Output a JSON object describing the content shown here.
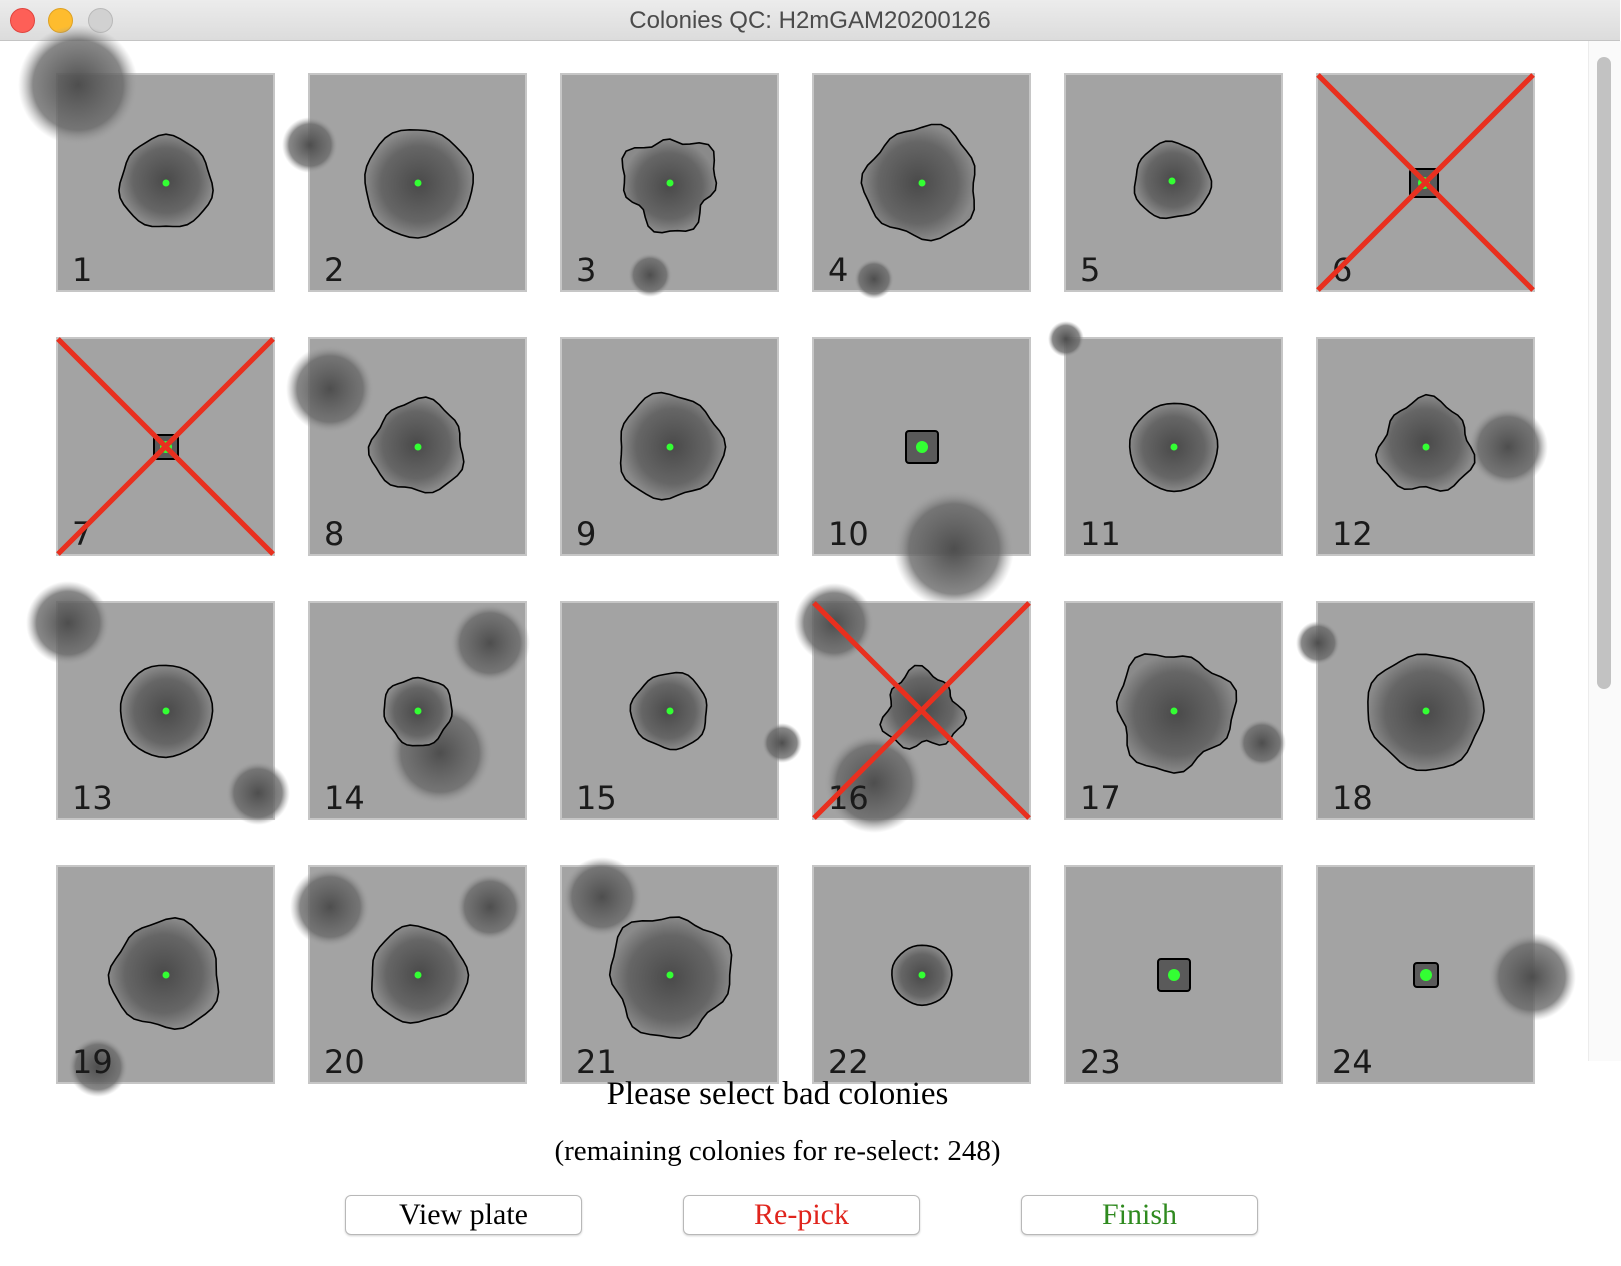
{
  "window": {
    "title": "Colonies QC: H2mGAM20200126"
  },
  "colors": {
    "background_gray": "#a3a3a3",
    "reject_cross": "#e8301f",
    "center_marker": "#33ff33",
    "repick_text": "#e0241c",
    "finish_text": "#2f8a1f"
  },
  "colonies": [
    {
      "number": "1",
      "rejected": false
    },
    {
      "number": "2",
      "rejected": false
    },
    {
      "number": "3",
      "rejected": false
    },
    {
      "number": "4",
      "rejected": false
    },
    {
      "number": "5",
      "rejected": false
    },
    {
      "number": "6",
      "rejected": true
    },
    {
      "number": "7",
      "rejected": true
    },
    {
      "number": "8",
      "rejected": false
    },
    {
      "number": "9",
      "rejected": false
    },
    {
      "number": "10",
      "rejected": false
    },
    {
      "number": "11",
      "rejected": false
    },
    {
      "number": "12",
      "rejected": false
    },
    {
      "number": "13",
      "rejected": false
    },
    {
      "number": "14",
      "rejected": false
    },
    {
      "number": "15",
      "rejected": false
    },
    {
      "number": "16",
      "rejected": true
    },
    {
      "number": "17",
      "rejected": false
    },
    {
      "number": "18",
      "rejected": false
    },
    {
      "number": "19",
      "rejected": false
    },
    {
      "number": "20",
      "rejected": false
    },
    {
      "number": "21",
      "rejected": false
    },
    {
      "number": "22",
      "rejected": false
    },
    {
      "number": "23",
      "rejected": false
    },
    {
      "number": "24",
      "rejected": false
    }
  ],
  "instructions": {
    "prompt": "Please select bad colonies",
    "remaining": "(remaining colonies for re-select: 248)"
  },
  "buttons": {
    "view_plate": "View plate",
    "repick": "Re-pick",
    "finish": "Finish"
  }
}
